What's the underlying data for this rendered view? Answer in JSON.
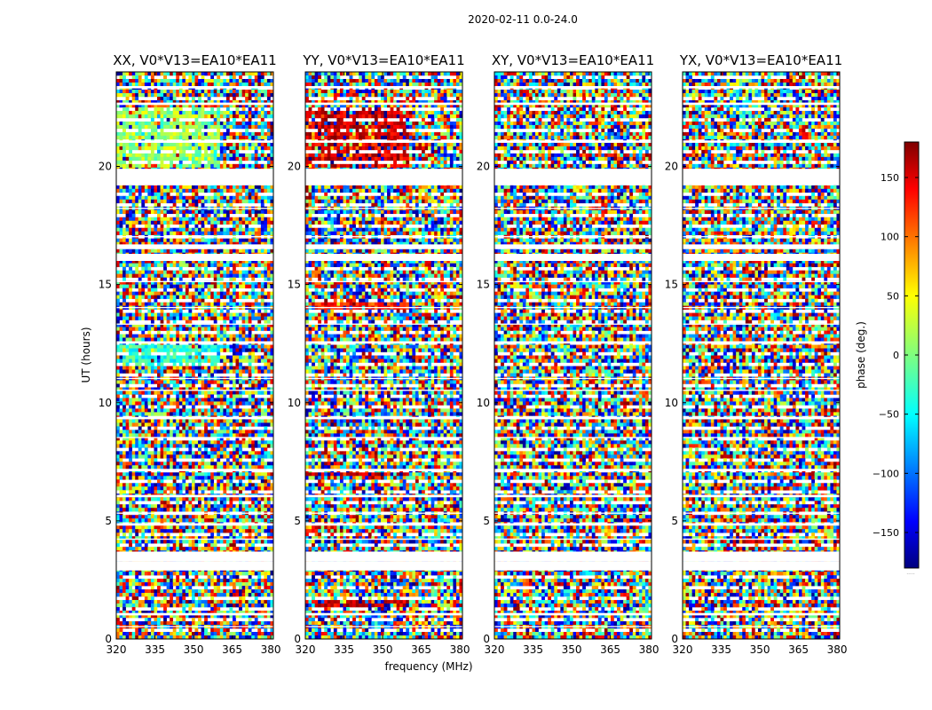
{
  "figure": {
    "suptitle": "2020-02-11 0.0-24.0",
    "xlabel": "frequency (MHz)",
    "ylabel": "UT (hours)"
  },
  "colorbar": {
    "label": "phase (deg.)",
    "range": [
      -180,
      180
    ],
    "ticks": [
      150,
      100,
      50,
      0,
      -50,
      -100,
      -150
    ],
    "tick_labels": [
      "150",
      "100",
      "50",
      "0",
      "−50",
      "−100",
      "−150"
    ],
    "colormap": "jet",
    "colors": [
      "#00007f",
      "#0000ff",
      "#00ffff",
      "#7fff7f",
      "#ffff00",
      "#ff0000",
      "#7f0000"
    ],
    "footnote": "....."
  },
  "chart_data": [
    {
      "type": "heatmap",
      "title": "XX, V0*V13=EA10*EA11",
      "xlabel": "",
      "ylabel": "UT (hours)",
      "xlim": [
        320,
        381
      ],
      "ylim": [
        0,
        24
      ],
      "xticks": [
        320,
        335,
        350,
        365,
        380
      ],
      "xtick_labels": [
        "320",
        "335",
        "350",
        "365",
        "380"
      ],
      "yticks": [
        0,
        5,
        10,
        15,
        20
      ],
      "ytick_labels": [
        "0",
        "5",
        "10",
        "15",
        "20"
      ],
      "z": "visibility phase (deg)",
      "dominant_phase_band_hours": [
        [
          19.9,
          22.5,
          10
        ],
        [
          11.6,
          12.5,
          -30
        ]
      ]
    },
    {
      "type": "heatmap",
      "title": "YY, V0*V13=EA10*EA11",
      "xlabel": "frequency (MHz)",
      "ylabel": "",
      "xlim": [
        320,
        381
      ],
      "ylim": [
        0,
        24
      ],
      "xticks": [
        320,
        335,
        350,
        365,
        380
      ],
      "xtick_labels": [
        "320",
        "335",
        "350",
        "365",
        "380"
      ],
      "yticks": [
        0,
        5,
        10,
        15,
        20
      ],
      "ytick_labels": [
        "0",
        "5",
        "10",
        "15",
        "20"
      ],
      "z": "visibility phase (deg)",
      "dominant_phase_band_hours": [
        [
          19.9,
          22.5,
          150
        ],
        [
          1.3,
          1.6,
          160
        ],
        [
          6.9,
          7.1,
          160
        ],
        [
          13.9,
          14.2,
          120
        ]
      ]
    },
    {
      "type": "heatmap",
      "title": "XY, V0*V13=EA10*EA11",
      "xlabel": "",
      "ylabel": "",
      "xlim": [
        320,
        381
      ],
      "ylim": [
        0,
        24
      ],
      "xticks": [
        320,
        335,
        350,
        365,
        380
      ],
      "xtick_labels": [
        "320",
        "335",
        "350",
        "365",
        "380"
      ],
      "yticks": [
        0,
        5,
        10,
        15,
        20
      ],
      "ytick_labels": [
        "0",
        "5",
        "10",
        "15",
        "20"
      ],
      "z": "visibility phase (deg)",
      "dominant_phase_band_hours": []
    },
    {
      "type": "heatmap",
      "title": "YX, V0*V13=EA10*EA11",
      "xlabel": "",
      "ylabel": "",
      "xlim": [
        320,
        381
      ],
      "ylim": [
        0,
        24
      ],
      "xticks": [
        320,
        335,
        350,
        365,
        380
      ],
      "xtick_labels": [
        "320",
        "335",
        "350",
        "365",
        "380"
      ],
      "yticks": [
        0,
        5,
        10,
        15,
        20
      ],
      "ytick_labels": [
        "0",
        "5",
        "10",
        "15",
        "20"
      ],
      "z": "visibility phase (deg)",
      "dominant_phase_band_hours": []
    }
  ],
  "data_gaps_hours": [
    [
      3.3,
      3.7
    ],
    [
      2.9,
      3.3
    ],
    [
      19.2,
      19.9
    ],
    [
      16.0,
      16.3
    ],
    [
      16.5,
      16.7
    ],
    [
      12.5,
      12.6
    ],
    [
      9.3,
      9.4
    ],
    [
      7.1,
      7.2
    ],
    [
      6.0,
      6.1
    ],
    [
      4.8,
      4.9
    ],
    [
      1.0,
      1.1
    ],
    [
      23.3,
      23.4
    ],
    [
      22.6,
      22.7
    ],
    [
      21.0,
      21.1
    ],
    [
      18.2,
      18.25
    ],
    [
      17.0,
      17.05
    ],
    [
      15.1,
      15.15
    ],
    [
      14.0,
      14.05
    ],
    [
      13.3,
      13.35
    ],
    [
      11.0,
      11.05
    ],
    [
      10.5,
      10.55
    ],
    [
      8.5,
      8.55
    ],
    [
      5.3,
      5.35
    ],
    [
      4.2,
      4.25
    ],
    [
      0.5,
      0.55
    ]
  ]
}
